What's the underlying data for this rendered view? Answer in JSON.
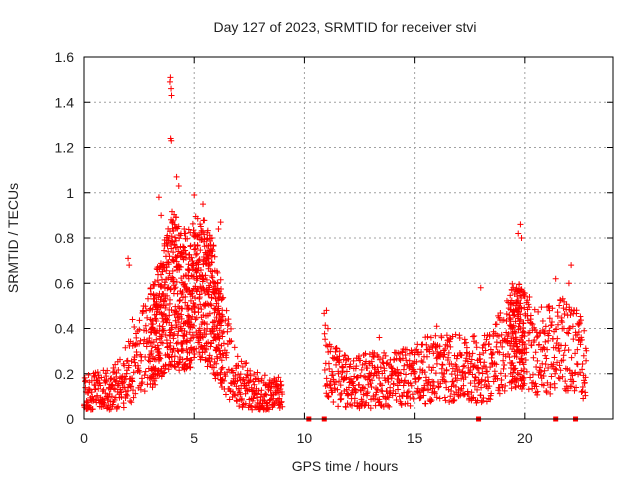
{
  "chart_data": {
    "type": "scatter",
    "title": "Day 127 of 2023, SRMTID for receiver stvi",
    "xlabel": "GPS time / hours",
    "ylabel": "SRMTID / TECUs",
    "xlim": [
      0,
      24
    ],
    "ylim": [
      0,
      1.6
    ],
    "x_ticks": [
      0,
      5,
      10,
      15,
      20
    ],
    "y_ticks": [
      0,
      0.2,
      0.4,
      0.6,
      0.8,
      1,
      1.2,
      1.4,
      1.6
    ],
    "x_tick_labels": [
      "0",
      "5",
      "10",
      "15",
      "20"
    ],
    "y_tick_labels": [
      "0",
      "0.2",
      "0.4",
      "0.6",
      "0.8",
      "1",
      "1.2",
      "1.4",
      "1.6"
    ],
    "grid": true,
    "marker": "+",
    "series": [
      {
        "name": "SRMTID",
        "color": "#ff0000",
        "profile": [
          [
            0.0,
            0.1
          ],
          [
            0.5,
            0.12
          ],
          [
            1.0,
            0.13
          ],
          [
            1.5,
            0.14
          ],
          [
            2.0,
            0.2
          ],
          [
            2.5,
            0.28
          ],
          [
            3.0,
            0.35
          ],
          [
            3.5,
            0.45
          ],
          [
            4.0,
            0.58
          ],
          [
            4.5,
            0.52
          ],
          [
            5.0,
            0.56
          ],
          [
            5.5,
            0.55
          ],
          [
            6.0,
            0.45
          ],
          [
            6.5,
            0.28
          ],
          [
            7.0,
            0.17
          ],
          [
            7.5,
            0.13
          ],
          [
            8.0,
            0.11
          ],
          [
            8.5,
            0.1
          ],
          [
            9.0,
            0.1
          ],
          [
            10.9,
            0.32
          ],
          [
            11.2,
            0.2
          ],
          [
            12.0,
            0.16
          ],
          [
            13.0,
            0.17
          ],
          [
            14.0,
            0.17
          ],
          [
            15.0,
            0.2
          ],
          [
            16.0,
            0.23
          ],
          [
            17.0,
            0.22
          ],
          [
            18.0,
            0.22
          ],
          [
            18.5,
            0.25
          ],
          [
            19.0,
            0.3
          ],
          [
            19.5,
            0.38
          ],
          [
            20.0,
            0.35
          ],
          [
            20.5,
            0.3
          ],
          [
            21.0,
            0.3
          ],
          [
            21.5,
            0.33
          ],
          [
            22.0,
            0.32
          ],
          [
            22.5,
            0.3
          ],
          [
            22.8,
            0.2
          ]
        ],
        "segments": [
          [
            0.0,
            9.0
          ],
          [
            10.9,
            22.8
          ]
        ],
        "spikes": [
          [
            3.9,
            1.49
          ],
          [
            3.92,
            1.51
          ],
          [
            3.95,
            1.46
          ],
          [
            3.97,
            1.43
          ],
          [
            3.93,
            1.24
          ],
          [
            3.96,
            1.23
          ],
          [
            4.2,
            1.07
          ],
          [
            4.3,
            1.03
          ],
          [
            5.0,
            0.99
          ],
          [
            5.4,
            0.95
          ],
          [
            3.4,
            0.98
          ],
          [
            3.5,
            0.9
          ],
          [
            4.0,
            0.87
          ],
          [
            4.4,
            0.82
          ],
          [
            2.0,
            0.71
          ],
          [
            2.05,
            0.68
          ],
          [
            19.8,
            0.86
          ],
          [
            19.7,
            0.82
          ],
          [
            19.85,
            0.8
          ],
          [
            22.1,
            0.68
          ],
          [
            22.0,
            0.6
          ],
          [
            21.4,
            0.62
          ],
          [
            18.0,
            0.58
          ],
          [
            16.0,
            0.41
          ],
          [
            11.0,
            0.48
          ],
          [
            13.4,
            0.36
          ],
          [
            6.2,
            0.87
          ],
          [
            6.1,
            0.84
          ],
          [
            2.2,
            0.44
          ],
          [
            5.8,
            0.8
          ]
        ],
        "zero_markers": [
          10.2,
          10.9,
          17.9,
          21.4,
          22.3
        ]
      }
    ]
  }
}
